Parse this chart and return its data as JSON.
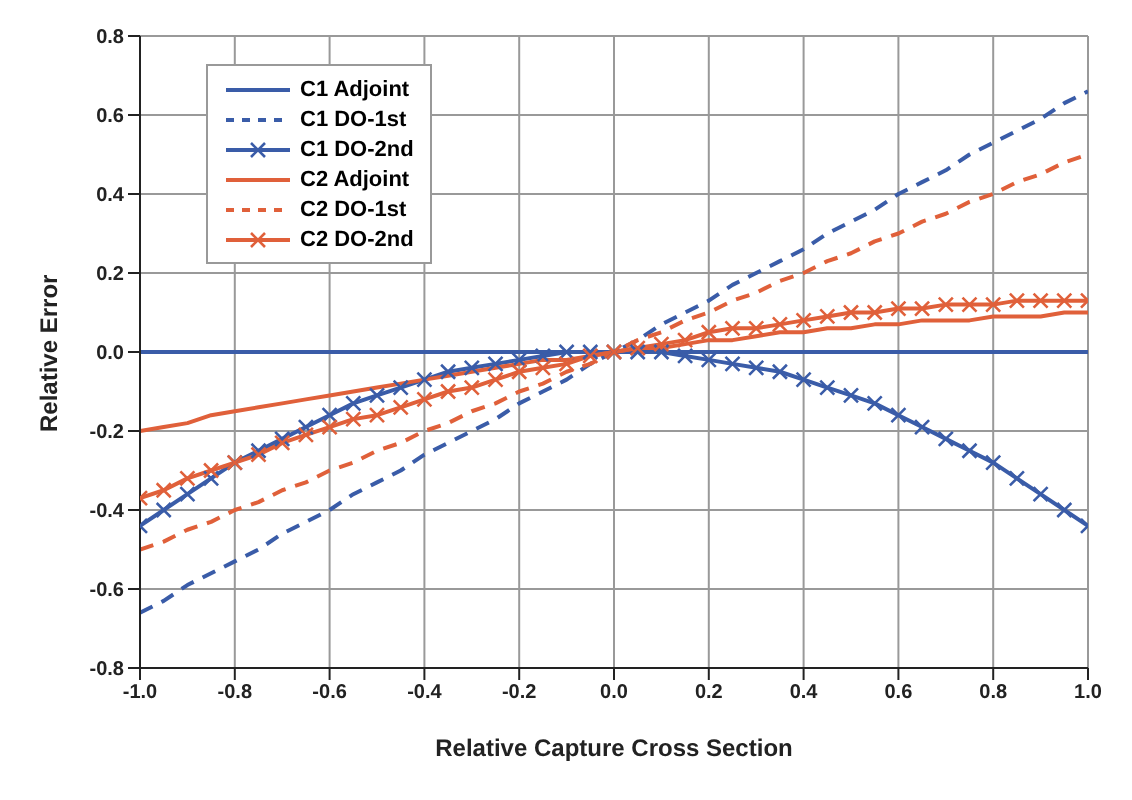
{
  "chart_data": {
    "type": "line",
    "xlabel": "Relative Capture Cross Section",
    "ylabel": "Relative Error",
    "xlim": [
      -1,
      1
    ],
    "xticks": [
      {
        "value": -1,
        "label": "-1.0"
      },
      -0.8,
      -0.6,
      -0.4,
      -0.2,
      {
        "value": 0,
        "label": "0.0"
      },
      0.2,
      0.4,
      0.6,
      0.8,
      {
        "value": 1,
        "label": "1.0"
      }
    ],
    "ylim": [
      -0.8,
      0.8
    ],
    "yticks": [
      -0.8,
      -0.6,
      -0.4,
      -0.2,
      {
        "value": 0,
        "label": "0.0"
      },
      0.2,
      0.4,
      0.6,
      0.8
    ],
    "grid": true,
    "legend": "top left",
    "marker": "none",
    "line_style": "solid",
    "x": [
      -1,
      -0.95,
      -0.9,
      -0.85,
      -0.8,
      -0.75,
      -0.7,
      -0.65,
      -0.6,
      -0.55,
      -0.5,
      -0.45,
      -0.4,
      -0.35,
      -0.3,
      -0.25,
      -0.2,
      -0.15,
      -0.1,
      -0.05,
      0,
      0.05,
      0.1,
      0.15,
      0.2,
      0.25,
      0.3,
      0.35,
      0.4,
      0.45,
      0.5,
      0.55,
      0.6,
      0.65,
      0.7,
      0.75,
      0.8,
      0.85,
      0.9,
      0.95,
      1
    ],
    "series": [
      {
        "name": "C1 Adjoint",
        "color": "#3a5ca8",
        "values": [
          0,
          0,
          0,
          0,
          0,
          0,
          0,
          0,
          0,
          0,
          0,
          0,
          0,
          0,
          0,
          0,
          0,
          0,
          0,
          0,
          0,
          0,
          0,
          0,
          0,
          0,
          0,
          0,
          0,
          0,
          0,
          0,
          0,
          0,
          0,
          0,
          0,
          0,
          0,
          0,
          0
        ]
      },
      {
        "name": "C1 DO-1st",
        "color": "#3a5ca8",
        "line_style": "dashed",
        "values": [
          -0.66,
          -0.63,
          -0.59,
          -0.56,
          -0.53,
          -0.5,
          -0.46,
          -0.43,
          -0.4,
          -0.36,
          -0.33,
          -0.3,
          -0.26,
          -0.23,
          -0.2,
          -0.17,
          -0.13,
          -0.1,
          -0.07,
          -0.03,
          0,
          0.03,
          0.07,
          0.1,
          0.13,
          0.17,
          0.2,
          0.23,
          0.26,
          0.3,
          0.33,
          0.36,
          0.4,
          0.43,
          0.46,
          0.5,
          0.53,
          0.56,
          0.59,
          0.63,
          0.66
        ]
      },
      {
        "name": "C1 DO-2nd",
        "color": "#3a5ca8",
        "marker": "cross",
        "values": [
          -0.44,
          -0.4,
          -0.36,
          -0.32,
          -0.28,
          -0.25,
          -0.22,
          -0.19,
          -0.16,
          -0.13,
          -0.11,
          -0.09,
          -0.07,
          -0.05,
          -0.04,
          -0.03,
          -0.02,
          -0.01,
          0,
          0,
          0,
          0,
          0,
          -0.01,
          -0.02,
          -0.03,
          -0.04,
          -0.05,
          -0.07,
          -0.09,
          -0.11,
          -0.13,
          -0.16,
          -0.19,
          -0.22,
          -0.25,
          -0.28,
          -0.32,
          -0.36,
          -0.4,
          -0.44
        ]
      },
      {
        "name": "C2 Adjoint",
        "color": "#e0603a",
        "values": [
          -0.2,
          -0.19,
          -0.18,
          -0.16,
          -0.15,
          -0.14,
          -0.13,
          -0.12,
          -0.11,
          -0.1,
          -0.09,
          -0.08,
          -0.07,
          -0.06,
          -0.05,
          -0.04,
          -0.03,
          -0.02,
          -0.02,
          -0.01,
          0,
          0.01,
          0.01,
          0.02,
          0.03,
          0.03,
          0.04,
          0.05,
          0.05,
          0.06,
          0.06,
          0.07,
          0.07,
          0.08,
          0.08,
          0.08,
          0.09,
          0.09,
          0.09,
          0.1,
          0.1
        ]
      },
      {
        "name": "C2 DO-1st",
        "color": "#e0603a",
        "line_style": "dashed",
        "values": [
          -0.5,
          -0.48,
          -0.45,
          -0.43,
          -0.4,
          -0.38,
          -0.35,
          -0.33,
          -0.3,
          -0.28,
          -0.25,
          -0.23,
          -0.2,
          -0.18,
          -0.15,
          -0.13,
          -0.1,
          -0.08,
          -0.05,
          -0.03,
          0,
          0.03,
          0.05,
          0.08,
          0.1,
          0.13,
          0.15,
          0.18,
          0.2,
          0.23,
          0.25,
          0.28,
          0.3,
          0.33,
          0.35,
          0.38,
          0.4,
          0.43,
          0.45,
          0.48,
          0.5
        ]
      },
      {
        "name": "C2 DO-2nd",
        "color": "#e0603a",
        "marker": "cross",
        "values": [
          -0.37,
          -0.35,
          -0.32,
          -0.3,
          -0.28,
          -0.26,
          -0.23,
          -0.21,
          -0.19,
          -0.17,
          -0.16,
          -0.14,
          -0.12,
          -0.1,
          -0.09,
          -0.07,
          -0.05,
          -0.04,
          -0.03,
          -0.01,
          0,
          0.01,
          0.02,
          0.03,
          0.05,
          0.06,
          0.06,
          0.07,
          0.08,
          0.09,
          0.1,
          0.1,
          0.11,
          0.11,
          0.12,
          0.12,
          0.12,
          0.13,
          0.13,
          0.13,
          0.13
        ]
      }
    ]
  }
}
